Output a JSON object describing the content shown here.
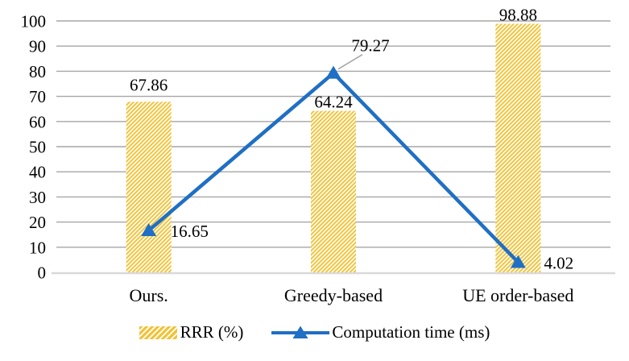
{
  "chart_data": {
    "type": "combo_bar_line",
    "title": "",
    "xlabel": "",
    "ylabel": "",
    "categories": [
      "Ours.",
      "Greedy-based",
      "UE order-based"
    ],
    "series": [
      {
        "name": "RRR (%)",
        "type": "bar",
        "values": [
          67.86,
          64.24,
          98.88
        ],
        "data_labels": [
          "67.86",
          "64.24",
          "98.88"
        ],
        "color": "#F2C338",
        "pattern": "white-diagonal-hatch"
      },
      {
        "name": "Computation time (ms)",
        "type": "line",
        "values": [
          16.65,
          79.27,
          4.02
        ],
        "data_labels": [
          "16.65",
          "79.27",
          "4.02"
        ],
        "color": "#1F6FC4",
        "marker": "triangle-up"
      }
    ],
    "y_axis": {
      "min": 0,
      "max": 100,
      "step": 10,
      "tick_labels": [
        "0",
        "10",
        "20",
        "30",
        "40",
        "50",
        "60",
        "70",
        "80",
        "90",
        "100"
      ]
    },
    "grid": true,
    "legend_position": "bottom"
  },
  "legend": {
    "items": [
      {
        "label": "RRR (%)",
        "swatch": "hatch-rect"
      },
      {
        "label": "Computation time (ms)",
        "swatch": "line-with-triangle"
      }
    ]
  },
  "colors": {
    "bar_gold": "#F2C338",
    "line_blue": "#1F6FC4",
    "gridline_gray": "#A6A6A6",
    "axis_light_gray": "#D9D9D9",
    "text_black": "#000000"
  }
}
